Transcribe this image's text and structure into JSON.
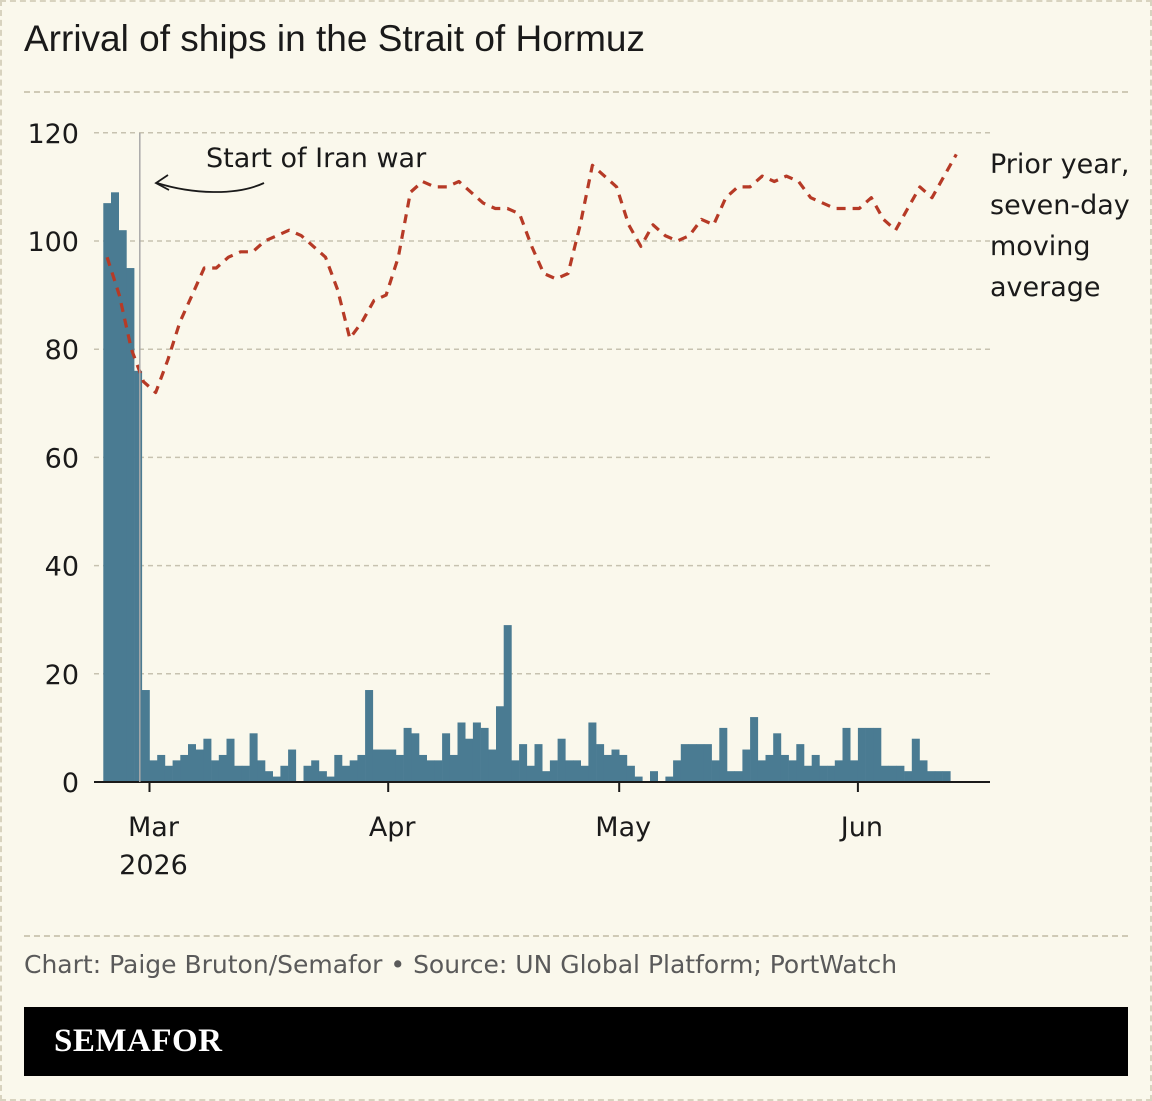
{
  "header": {
    "title": "Arrival of ships in the Strait of Hormuz"
  },
  "footer": {
    "source": "Chart: Paige Bruton/Semafor • Source: UN Global Platform; PortWatch",
    "brand": "SEMAFOR"
  },
  "colors": {
    "bars": "#4a7b92",
    "prior_line": "#b63a26",
    "background": "#faf8ec"
  },
  "chart_data": {
    "type": "bar",
    "title": "Arrival of ships in the Strait of Hormuz",
    "ylim": [
      0,
      120
    ],
    "yticks": [
      0,
      20,
      40,
      60,
      80,
      100,
      120
    ],
    "grid": true,
    "xticks": [
      {
        "date": "2026-03-01",
        "label": "Mar",
        "sublabel": "2026"
      },
      {
        "date": "2026-04-01",
        "label": "Apr",
        "sublabel": ""
      },
      {
        "date": "2026-05-01",
        "label": "May",
        "sublabel": ""
      },
      {
        "date": "2026-06-01",
        "label": "Jun",
        "sublabel": ""
      }
    ],
    "annotation": {
      "date": "2026-02-28",
      "text": "Start of Iran war"
    },
    "series": [
      {
        "type": "bar",
        "start_date": "2026-02-23",
        "values": [
          107,
          109,
          102,
          95,
          76,
          17,
          4,
          5,
          3,
          4,
          5,
          7,
          6,
          8,
          4,
          5,
          8,
          3,
          3,
          9,
          4,
          2,
          1,
          3,
          6,
          0,
          3,
          4,
          2,
          1,
          5,
          3,
          4,
          5,
          17,
          6,
          6,
          6,
          5,
          10,
          9,
          5,
          4,
          4,
          9,
          5,
          11,
          8,
          11,
          10,
          6,
          14,
          29,
          4,
          7,
          3,
          7,
          2,
          4,
          8,
          4,
          4,
          3,
          11,
          7,
          5,
          6,
          5,
          3,
          1,
          0,
          2,
          0,
          1,
          4,
          7,
          7,
          7,
          7,
          4,
          10,
          2,
          2,
          6,
          12,
          4,
          5,
          9,
          5,
          4,
          7,
          3,
          5,
          3,
          3,
          4,
          10,
          4,
          10,
          10,
          10,
          3,
          3,
          3,
          2,
          8,
          4,
          2,
          2,
          2
        ]
      },
      {
        "type": "line",
        "name": "Prior year, seven-day moving average",
        "start_date": "2026-02-23",
        "values": [
          97,
          90,
          80,
          74,
          72,
          78,
          85,
          90,
          95,
          95,
          97,
          98,
          98,
          100,
          101,
          102,
          101,
          99,
          97,
          91,
          82,
          85,
          89,
          90,
          97,
          109,
          111,
          110,
          110,
          111,
          109,
          107,
          106,
          106,
          105,
          99,
          94,
          93,
          94,
          103,
          114,
          112,
          110,
          103,
          99,
          103,
          101,
          100,
          101,
          104,
          103,
          108,
          110,
          110,
          112,
          111,
          112,
          111,
          108,
          107,
          106,
          106,
          106,
          108,
          104,
          102,
          106,
          110,
          108,
          112,
          116
        ]
      }
    ]
  }
}
